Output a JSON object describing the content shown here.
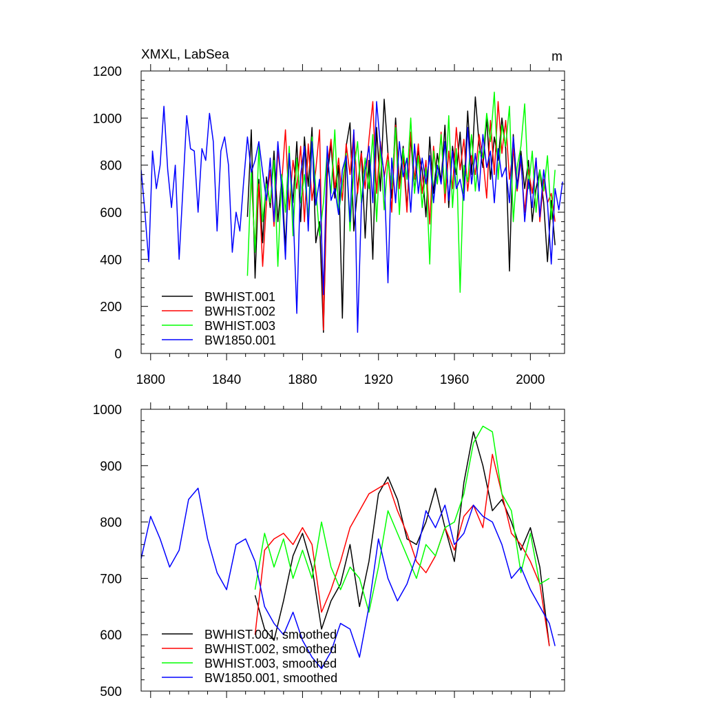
{
  "chart_data": [
    {
      "type": "line",
      "title": "XMXL, LabSea",
      "units_label": "m",
      "xlim": [
        1795,
        2018
      ],
      "ylim": [
        0,
        1200
      ],
      "x_ticks": [
        1800,
        1840,
        1880,
        1920,
        1960,
        2000
      ],
      "y_ticks": [
        0,
        200,
        400,
        600,
        800,
        1000,
        1200
      ],
      "legend_position": "bottom-left",
      "series": [
        {
          "name": "BWHIST.001",
          "color": "#000000",
          "x": [
            1851,
            1853,
            1855,
            1857,
            1859,
            1861,
            1863,
            1865,
            1867,
            1869,
            1871,
            1873,
            1875,
            1877,
            1879,
            1881,
            1883,
            1885,
            1887,
            1889,
            1891,
            1893,
            1895,
            1897,
            1899,
            1901,
            1903,
            1905,
            1907,
            1909,
            1911,
            1913,
            1915,
            1917,
            1919,
            1921,
            1923,
            1925,
            1927,
            1929,
            1931,
            1933,
            1935,
            1937,
            1939,
            1941,
            1943,
            1945,
            1947,
            1949,
            1951,
            1953,
            1955,
            1957,
            1959,
            1961,
            1963,
            1965,
            1967,
            1969,
            1971,
            1973,
            1975,
            1977,
            1979,
            1981,
            1983,
            1985,
            1987,
            1989,
            1991,
            1993,
            1995,
            1997,
            1999,
            2001,
            2003,
            2005,
            2007,
            2009,
            2011,
            2013
          ],
          "values": [
            580,
            950,
            320,
            740,
            470,
            750,
            620,
            860,
            560,
            740,
            450,
            840,
            640,
            900,
            560,
            920,
            710,
            960,
            470,
            560,
            90,
            750,
            890,
            660,
            800,
            150,
            880,
            980,
            520,
            700,
            860,
            490,
            820,
            400,
            960,
            690,
            1080,
            850,
            660,
            1000,
            720,
            880,
            610,
            920,
            690,
            860,
            780,
            580,
            920,
            680,
            850,
            730,
            970,
            620,
            880,
            760,
            940,
            680,
            1030,
            760,
            1090,
            890,
            790,
            1000,
            740,
            920,
            820,
            1000,
            870,
            350,
            930,
            710,
            860,
            700,
            820,
            560,
            700,
            780,
            640,
            390,
            650,
            460
          ]
        },
        {
          "name": "BWHIST.002",
          "color": "#ff0000",
          "x": [
            1853,
            1855,
            1857,
            1859,
            1861,
            1863,
            1865,
            1867,
            1869,
            1871,
            1873,
            1875,
            1877,
            1879,
            1881,
            1883,
            1885,
            1887,
            1889,
            1891,
            1893,
            1895,
            1897,
            1899,
            1901,
            1903,
            1905,
            1907,
            1909,
            1911,
            1913,
            1915,
            1917,
            1919,
            1921,
            1923,
            1925,
            1927,
            1929,
            1931,
            1933,
            1935,
            1937,
            1939,
            1941,
            1943,
            1945,
            1947,
            1949,
            1951,
            1953,
            1955,
            1957,
            1959,
            1961,
            1963,
            1965,
            1967,
            1969,
            1971,
            1973,
            1975,
            1977,
            1979,
            1981,
            1983,
            1985,
            1987,
            1989,
            1991,
            1993,
            1995,
            1997,
            1999,
            2001,
            2003,
            2005,
            2007,
            2009,
            2011,
            2013
          ],
          "values": [
            740,
            450,
            720,
            370,
            640,
            780,
            540,
            860,
            720,
            950,
            610,
            820,
            700,
            880,
            560,
            890,
            650,
            780,
            950,
            100,
            790,
            910,
            700,
            830,
            650,
            890,
            760,
            940,
            680,
            850,
            700,
            910,
            1070,
            680,
            900,
            750,
            850,
            600,
            970,
            700,
            830,
            600,
            940,
            740,
            890,
            680,
            820,
            550,
            880,
            720,
            940,
            640,
            860,
            700,
            960,
            780,
            910,
            690,
            840,
            760,
            930,
            830,
            660,
            990,
            760,
            1070,
            850,
            990,
            740,
            870,
            690,
            820,
            600,
            780,
            680,
            830,
            560,
            740,
            640,
            680,
            560
          ]
        },
        {
          "name": "BWHIST.003",
          "color": "#00ff00",
          "x": [
            1851,
            1853,
            1855,
            1857,
            1859,
            1861,
            1863,
            1865,
            1867,
            1869,
            1871,
            1873,
            1875,
            1877,
            1879,
            1881,
            1883,
            1885,
            1887,
            1889,
            1891,
            1893,
            1895,
            1897,
            1899,
            1901,
            1903,
            1905,
            1907,
            1909,
            1911,
            1913,
            1915,
            1917,
            1919,
            1921,
            1923,
            1925,
            1927,
            1929,
            1931,
            1933,
            1935,
            1937,
            1939,
            1941,
            1943,
            1945,
            1947,
            1949,
            1951,
            1953,
            1955,
            1957,
            1959,
            1961,
            1963,
            1965,
            1967,
            1969,
            1971,
            1973,
            1975,
            1977,
            1979,
            1981,
            1983,
            1985,
            1987,
            1989,
            1991,
            1993,
            1995,
            1997,
            1999,
            2001,
            2003,
            2005,
            2007,
            2009,
            2011,
            2013
          ],
          "values": [
            330,
            780,
            430,
            880,
            560,
            720,
            640,
            820,
            370,
            760,
            600,
            880,
            500,
            830,
            640,
            760,
            580,
            920,
            700,
            500,
            640,
            860,
            680,
            950,
            590,
            720,
            850,
            520,
            780,
            900,
            640,
            830,
            700,
            930,
            560,
            880,
            610,
            820,
            700,
            960,
            590,
            870,
            740,
            1000,
            680,
            840,
            620,
            790,
            380,
            860,
            720,
            930,
            680,
            1010,
            620,
            870,
            260,
            800,
            730,
            930,
            690,
            860,
            830,
            1020,
            900,
            1110,
            740,
            970,
            880,
            1050,
            560,
            790,
            880,
            1060,
            700,
            860,
            600,
            780,
            690,
            840,
            570,
            780
          ]
        },
        {
          "name": "BW1850.001",
          "color": "#0000ff",
          "x": [
            1795,
            1797,
            1799,
            1801,
            1803,
            1805,
            1807,
            1809,
            1811,
            1813,
            1815,
            1817,
            1819,
            1821,
            1823,
            1825,
            1827,
            1829,
            1831,
            1833,
            1835,
            1837,
            1839,
            1841,
            1843,
            1845,
            1847,
            1849,
            1851,
            1853,
            1855,
            1857,
            1859,
            1861,
            1863,
            1865,
            1867,
            1869,
            1871,
            1873,
            1875,
            1877,
            1879,
            1881,
            1883,
            1885,
            1887,
            1889,
            1891,
            1893,
            1895,
            1897,
            1899,
            1901,
            1903,
            1905,
            1907,
            1909,
            1911,
            1913,
            1915,
            1917,
            1919,
            1921,
            1923,
            1925,
            1927,
            1929,
            1931,
            1933,
            1935,
            1937,
            1939,
            1941,
            1943,
            1945,
            1947,
            1949,
            1951,
            1953,
            1955,
            1957,
            1959,
            1961,
            1963,
            1965,
            1967,
            1969,
            1971,
            1973,
            1975,
            1977,
            1979,
            1981,
            1983,
            1985,
            1987,
            1989,
            1991,
            1993,
            1995,
            1997,
            1999,
            2001,
            2003,
            2005,
            2007,
            2009,
            2011,
            2013,
            2015,
            2017
          ],
          "values": [
            780,
            600,
            390,
            860,
            700,
            800,
            1050,
            780,
            620,
            800,
            400,
            700,
            1010,
            870,
            860,
            600,
            870,
            820,
            1020,
            900,
            520,
            860,
            920,
            800,
            430,
            600,
            520,
            730,
            920,
            770,
            820,
            900,
            770,
            650,
            830,
            560,
            900,
            700,
            400,
            850,
            620,
            170,
            760,
            880,
            520,
            900,
            630,
            740,
            250,
            880,
            650,
            700,
            590,
            780,
            840,
            560,
            950,
            90,
            630,
            780,
            880,
            640,
            1070,
            880,
            760,
            300,
            830,
            640,
            900,
            750,
            830,
            600,
            890,
            680,
            830,
            720,
            840,
            640,
            800,
            720,
            900,
            650,
            860,
            700,
            740,
            650,
            960,
            720,
            850,
            690,
            930,
            790,
            860,
            640,
            870,
            750,
            790,
            640,
            920,
            700,
            840,
            560,
            740,
            620,
            830,
            580,
            780,
            640,
            380,
            700,
            610,
            730
          ]
        }
      ]
    },
    {
      "type": "line",
      "title": "",
      "xlim": [
        1795,
        2018
      ],
      "ylim": [
        500,
        1000
      ],
      "x_ticks": [
        1800,
        1840,
        1880,
        1920,
        1960,
        2000
      ],
      "y_ticks": [
        500,
        600,
        700,
        800,
        900,
        1000
      ],
      "legend_position": "bottom-left",
      "series": [
        {
          "name": "BWHIST.001, smoothed",
          "color": "#000000",
          "x": [
            1855,
            1860,
            1865,
            1870,
            1875,
            1880,
            1885,
            1890,
            1895,
            1900,
            1905,
            1910,
            1915,
            1920,
            1925,
            1930,
            1935,
            1940,
            1945,
            1950,
            1955,
            1960,
            1965,
            1970,
            1975,
            1980,
            1985,
            1990,
            1995,
            2000,
            2005,
            2010
          ],
          "values": [
            670,
            610,
            590,
            660,
            740,
            780,
            720,
            610,
            660,
            690,
            760,
            650,
            730,
            850,
            880,
            840,
            770,
            760,
            800,
            860,
            790,
            730,
            870,
            960,
            900,
            820,
            840,
            800,
            750,
            790,
            720,
            580
          ]
        },
        {
          "name": "BWHIST.002, smoothed",
          "color": "#ff0000",
          "x": [
            1855,
            1860,
            1865,
            1870,
            1875,
            1880,
            1885,
            1890,
            1895,
            1900,
            1905,
            1910,
            1915,
            1920,
            1925,
            1930,
            1935,
            1940,
            1945,
            1950,
            1955,
            1960,
            1965,
            1970,
            1975,
            1980,
            1985,
            1990,
            1995,
            2000,
            2005,
            2010
          ],
          "values": [
            600,
            750,
            770,
            780,
            760,
            790,
            760,
            640,
            680,
            730,
            790,
            820,
            850,
            860,
            870,
            820,
            780,
            730,
            710,
            740,
            790,
            750,
            810,
            830,
            790,
            920,
            850,
            780,
            760,
            730,
            690,
            580
          ]
        },
        {
          "name": "BWHIST.003, smoothed",
          "color": "#00ff00",
          "x": [
            1855,
            1860,
            1865,
            1870,
            1875,
            1880,
            1885,
            1890,
            1895,
            1900,
            1905,
            1910,
            1915,
            1920,
            1925,
            1930,
            1935,
            1940,
            1945,
            1950,
            1955,
            1960,
            1965,
            1970,
            1975,
            1980,
            1985,
            1990,
            1995,
            2000,
            2005,
            2010
          ],
          "values": [
            680,
            780,
            720,
            770,
            700,
            750,
            700,
            800,
            720,
            680,
            720,
            700,
            640,
            720,
            820,
            780,
            740,
            700,
            760,
            740,
            790,
            800,
            850,
            940,
            970,
            960,
            850,
            820,
            710,
            780,
            690,
            700
          ]
        },
        {
          "name": "BW1850.001, smoothed",
          "color": "#0000ff",
          "x": [
            1795,
            1800,
            1805,
            1810,
            1815,
            1820,
            1825,
            1830,
            1835,
            1840,
            1845,
            1850,
            1855,
            1860,
            1865,
            1870,
            1875,
            1880,
            1885,
            1890,
            1895,
            1900,
            1905,
            1910,
            1915,
            1920,
            1925,
            1930,
            1935,
            1940,
            1945,
            1950,
            1955,
            1960,
            1965,
            1970,
            1975,
            1980,
            1985,
            1990,
            1995,
            2000,
            2005,
            2010,
            2013
          ],
          "values": [
            735,
            810,
            770,
            720,
            750,
            840,
            860,
            770,
            710,
            680,
            760,
            770,
            730,
            650,
            620,
            600,
            640,
            590,
            560,
            540,
            570,
            620,
            610,
            560,
            650,
            770,
            700,
            660,
            690,
            740,
            820,
            790,
            830,
            760,
            780,
            830,
            810,
            800,
            760,
            700,
            720,
            680,
            650,
            620,
            580
          ]
        }
      ]
    }
  ]
}
